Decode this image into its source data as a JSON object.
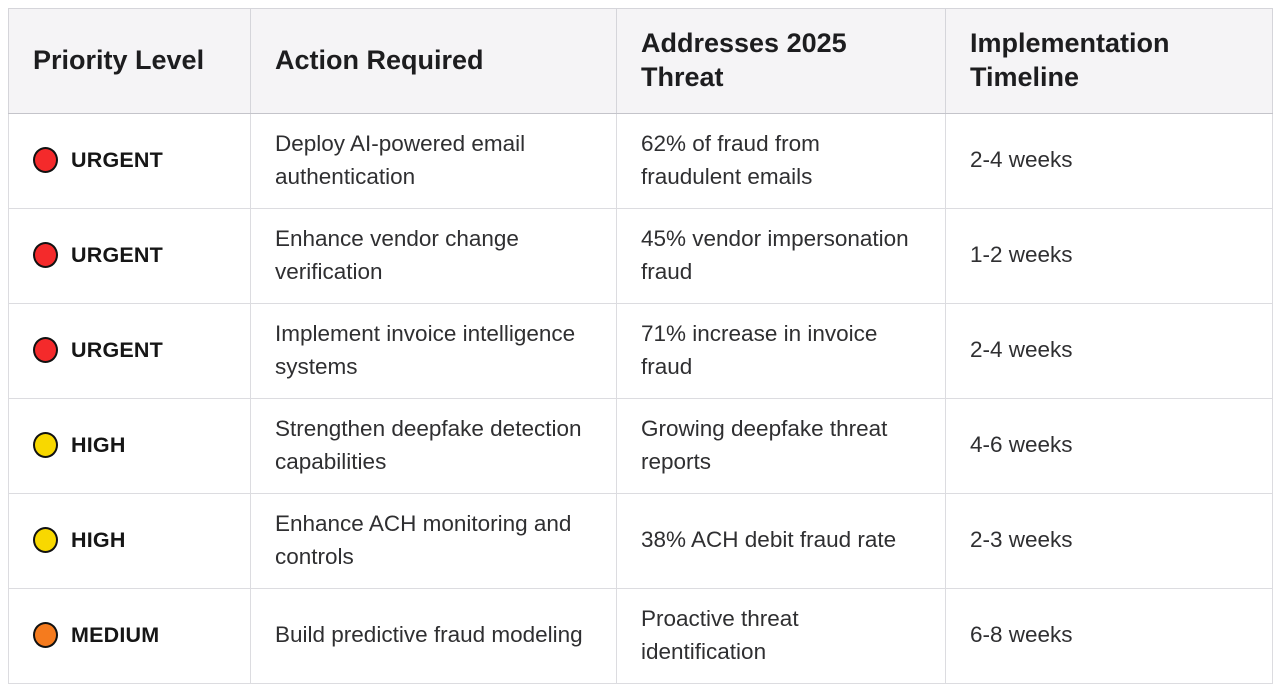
{
  "colors": {
    "urgent": "#f42a2b",
    "high": "#f8d800",
    "medium": "#f57b1e",
    "header_bg": "#f5f4f6",
    "border": "#dcdce0"
  },
  "table": {
    "columns": [
      {
        "label": "Priority Level"
      },
      {
        "label": "Action Required"
      },
      {
        "label": "Addresses 2025 Threat"
      },
      {
        "label": "Implementation Timeline"
      }
    ],
    "rows": [
      {
        "priority": {
          "label": "URGENT",
          "color": "#f42a2b"
        },
        "action": "Deploy AI-powered email authentication",
        "threat": "62% of fraud from fraudulent emails",
        "timeline": "2-4 weeks"
      },
      {
        "priority": {
          "label": "URGENT",
          "color": "#f42a2b"
        },
        "action": "Enhance vendor change verification",
        "threat": "45% vendor impersonation fraud",
        "timeline": "1-2 weeks"
      },
      {
        "priority": {
          "label": "URGENT",
          "color": "#f42a2b"
        },
        "action": "Implement invoice intelligence systems",
        "threat": "71% increase in invoice fraud",
        "timeline": "2-4 weeks"
      },
      {
        "priority": {
          "label": "HIGH",
          "color": "#f8d800"
        },
        "action": "Strengthen deepfake detection capabilities",
        "threat": "Growing deepfake threat reports",
        "timeline": "4-6 weeks"
      },
      {
        "priority": {
          "label": "HIGH",
          "color": "#f8d800"
        },
        "action": "Enhance ACH monitoring and controls",
        "threat": "38% ACH debit fraud rate",
        "timeline": "2-3 weeks"
      },
      {
        "priority": {
          "label": "MEDIUM",
          "color": "#f57b1e"
        },
        "action": "Build predictive fraud modeling",
        "threat": "Proactive threat identification",
        "timeline": "6-8 weeks"
      }
    ]
  },
  "chart_data": {
    "type": "table",
    "title": "",
    "columns": [
      "Priority Level",
      "Action Required",
      "Addresses 2025 Threat",
      "Implementation Timeline"
    ],
    "rows": [
      [
        "URGENT",
        "Deploy AI-powered email authentication",
        "62% of fraud from fraudulent emails",
        "2-4 weeks"
      ],
      [
        "URGENT",
        "Enhance vendor change verification",
        "45% vendor impersonation fraud",
        "1-2 weeks"
      ],
      [
        "URGENT",
        "Implement invoice intelligence systems",
        "71% increase in invoice fraud",
        "2-4 weeks"
      ],
      [
        "HIGH",
        "Strengthen deepfake detection capabilities",
        "Growing deepfake threat reports",
        "4-6 weeks"
      ],
      [
        "HIGH",
        "Enhance ACH monitoring and controls",
        "38% ACH debit fraud rate",
        "2-3 weeks"
      ],
      [
        "MEDIUM",
        "Build predictive fraud modeling",
        "Proactive threat identification",
        "6-8 weeks"
      ]
    ],
    "priority_colors": {
      "URGENT": "#f42a2b",
      "HIGH": "#f8d800",
      "MEDIUM": "#f57b1e"
    }
  }
}
